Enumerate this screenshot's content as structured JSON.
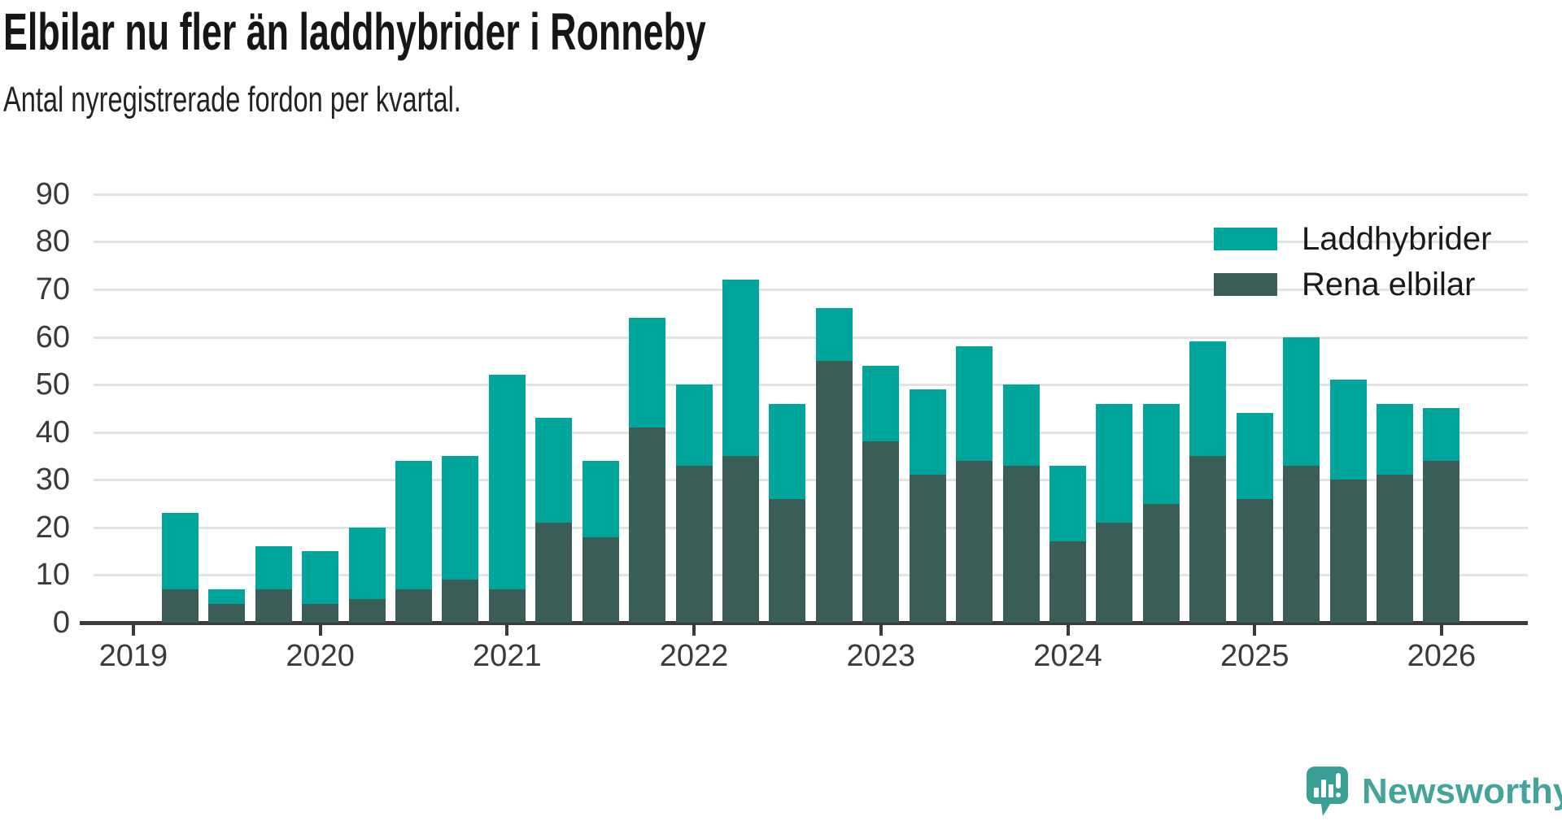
{
  "title": "Elbilar nu fler än laddhybrider i Ronneby",
  "subtitle": "Antal nyregistrerade fordon per kvartal.",
  "colors": {
    "laddhybrider": "#00a69b",
    "rena_elbilar": "#3a5e57",
    "grid": "#e3e3e3",
    "axis": "#3b3b3b",
    "tick_text": "#3a3a3a",
    "logo": "#44a49b"
  },
  "legend": [
    {
      "label": "Laddhybrider",
      "color_key": "laddhybrider"
    },
    {
      "label": "Rena elbilar",
      "color_key": "rena_elbilar"
    }
  ],
  "logo": {
    "text": "Newsworthy",
    "icon": "speech-bubble-bar-chart"
  },
  "chart_data": {
    "type": "bar",
    "stacked": true,
    "title": "Elbilar nu fler än laddhybrider i Ronneby",
    "subtitle": "Antal nyregistrerade fordon per kvartal.",
    "xlabel": "",
    "ylabel": "",
    "ylim": [
      0,
      90
    ],
    "y_ticks": [
      0,
      10,
      20,
      30,
      40,
      50,
      60,
      70,
      80,
      90
    ],
    "grid": true,
    "legend_position": "top-right",
    "x_tick_labels": [
      "2019",
      "2020",
      "2021",
      "2022",
      "2023",
      "2024",
      "2025",
      "2026"
    ],
    "categories": [
      "2019 Q2",
      "2019 Q3",
      "2019 Q4",
      "2020 Q1",
      "2020 Q2",
      "2020 Q3",
      "2020 Q4",
      "2021 Q1",
      "2021 Q2",
      "2021 Q3",
      "2021 Q4",
      "2022 Q1",
      "2022 Q2",
      "2022 Q3",
      "2022 Q4",
      "2023 Q1",
      "2023 Q2",
      "2023 Q3",
      "2023 Q4",
      "2024 Q1",
      "2024 Q2",
      "2024 Q3",
      "2024 Q4",
      "2025 Q1",
      "2025 Q2",
      "2025 Q3",
      "2025 Q4",
      "2026 Q1"
    ],
    "series": [
      {
        "name": "Rena elbilar",
        "color_key": "rena_elbilar",
        "values": [
          7,
          4,
          7,
          4,
          5,
          7,
          9,
          7,
          21,
          18,
          41,
          33,
          35,
          26,
          55,
          38,
          31,
          34,
          33,
          17,
          21,
          25,
          35,
          26,
          33,
          30,
          31,
          34
        ]
      },
      {
        "name": "Laddhybrider",
        "color_key": "laddhybrider",
        "values": [
          16,
          3,
          9,
          11,
          15,
          27,
          26,
          45,
          22,
          16,
          23,
          17,
          37,
          20,
          11,
          16,
          18,
          24,
          17,
          16,
          25,
          21,
          24,
          18,
          27,
          21,
          15,
          11
        ]
      }
    ],
    "totals": [
      23,
      7,
      16,
      15,
      20,
      34,
      35,
      52,
      43,
      34,
      64,
      50,
      72,
      46,
      66,
      54,
      49,
      58,
      50,
      33,
      46,
      46,
      59,
      44,
      60,
      51,
      46,
      45
    ]
  }
}
